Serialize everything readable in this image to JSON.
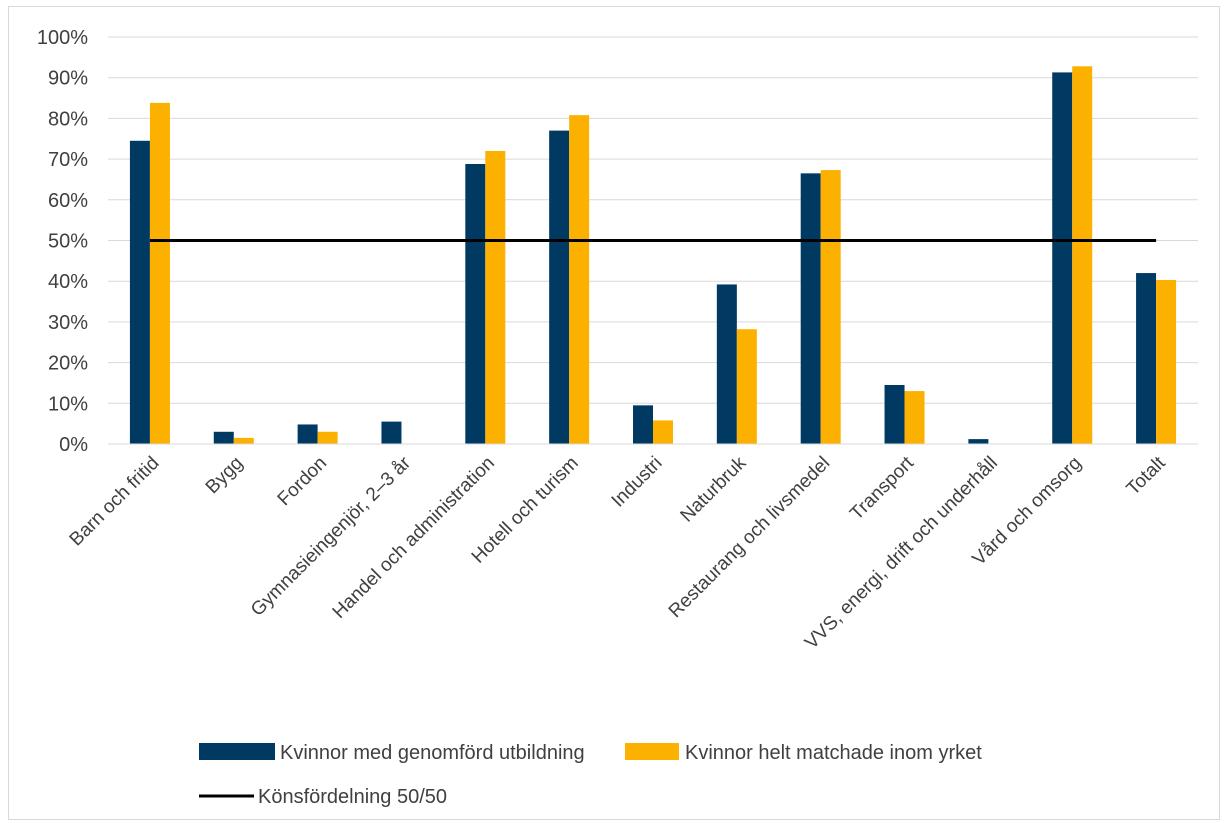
{
  "chart_data": {
    "type": "bar",
    "categories": [
      "Barn och fritid",
      "Bygg",
      "Fordon",
      "Gymnasieingenjör, 2–3 år",
      "Handel och administration",
      "Hotell och turism",
      "Industri",
      "Naturbruk",
      "Restaurang och livsmedel",
      "Transport",
      "VVS, energi, drift och underhåll",
      "Vård och omsorg",
      "Totalt"
    ],
    "series": [
      {
        "name": "Kvinnor med genomförd utbildning",
        "color": "#003A63",
        "values": [
          74.5,
          3,
          4.8,
          5.5,
          68.8,
          77,
          9.5,
          39.2,
          66.5,
          14.5,
          1.2,
          91.3,
          42
        ]
      },
      {
        "name": "Kvinnor helt matchade inom yrket",
        "color": "#FCB000",
        "values": [
          83.8,
          1.5,
          3,
          0,
          72,
          80.8,
          5.8,
          28.2,
          67.3,
          13,
          0,
          92.8,
          40.3
        ]
      }
    ],
    "reference_line": {
      "name": "Könsfördelning 50/50",
      "value": 50,
      "color": "#000000"
    },
    "ylim": [
      0,
      100
    ],
    "yticks": [
      "0%",
      "10%",
      "20%",
      "30%",
      "40%",
      "50%",
      "60%",
      "70%",
      "80%",
      "90%",
      "100%"
    ],
    "grid": true,
    "legend_position": "bottom"
  }
}
